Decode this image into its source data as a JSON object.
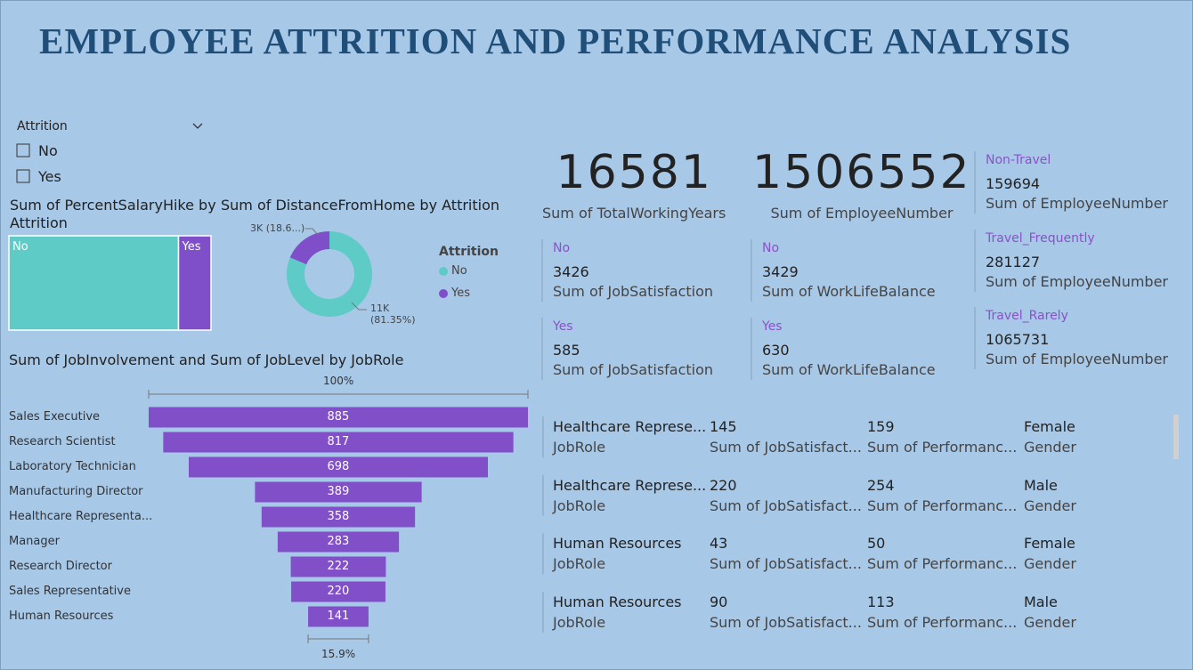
{
  "title": "EMPLOYEE ATTRITION AND PERFORMANCE ANALYSIS",
  "slicer": {
    "title": "Attrition",
    "options": [
      "No",
      "Yes"
    ]
  },
  "treemap": {
    "type": "treemap",
    "title": "Sum of PercentSalaryHike by Attrition",
    "categories": [
      "No",
      "Yes"
    ],
    "values": [
      18800,
      3600
    ],
    "colors": [
      "#5ecbc6",
      "#7f4fc9"
    ]
  },
  "donut": {
    "type": "donut",
    "title": "Sum of DistanceFromHome by Attrition",
    "legend_title": "Attrition",
    "categories": [
      "No",
      "Yes"
    ],
    "values": [
      11400,
      2613
    ],
    "value_labels": [
      "11K (81.35%)",
      "3K (18.6...)"
    ],
    "colors": [
      "#5ecbc6",
      "#7f4fc9"
    ]
  },
  "funnel": {
    "type": "funnel",
    "title": "Sum of JobInvolvement and Sum of JobLevel by JobRole",
    "categories": [
      "Sales Executive",
      "Research Scientist",
      "Laboratory Technician",
      "Manufacturing Director",
      "Healthcare Representa...",
      "Manager",
      "Research Director",
      "Sales Representative",
      "Human Resources"
    ],
    "values": [
      885,
      817,
      698,
      389,
      358,
      283,
      222,
      220,
      141
    ],
    "color": "#8150c9",
    "top_label": "100%",
    "bottom_label": "15.9%"
  },
  "kpis": [
    {
      "value": 16581,
      "label": "Sum of TotalWorkingYears"
    },
    {
      "value": 1506552,
      "label": "Sum of EmployeeNumber"
    }
  ],
  "job_satisfaction": [
    {
      "category": "No",
      "value": 3426,
      "label": "Sum of JobSatisfaction"
    },
    {
      "category": "Yes",
      "value": 585,
      "label": "Sum of JobSatisfaction"
    }
  ],
  "work_life_balance": [
    {
      "category": "No",
      "value": 3429,
      "label": "Sum of WorkLifeBalance"
    },
    {
      "category": "Yes",
      "value": 630,
      "label": "Sum of WorkLifeBalance"
    }
  ],
  "travel": [
    {
      "category": "Non-Travel",
      "value": 159694,
      "label": "Sum of EmployeeNumber"
    },
    {
      "category": "Travel_Frequently",
      "value": 281127,
      "label": "Sum of EmployeeNumber"
    },
    {
      "category": "Travel_Rarely",
      "value": 1065731,
      "label": "Sum of EmployeeNumber"
    }
  ],
  "role_gender_table": {
    "rows": [
      {
        "job_role": "Healthcare Represe...",
        "job_role_label": "JobRole",
        "job_satisfaction": 145,
        "job_satisfaction_label": "Sum of JobSatisfact...",
        "performance": 159,
        "performance_label": "Sum of Performanc...",
        "gender": "Female",
        "gender_label": "Gender"
      },
      {
        "job_role": "Healthcare Represe...",
        "job_role_label": "JobRole",
        "job_satisfaction": 220,
        "job_satisfaction_label": "Sum of JobSatisfact...",
        "performance": 254,
        "performance_label": "Sum of Performanc...",
        "gender": "Male",
        "gender_label": "Gender"
      },
      {
        "job_role": "Human Resources",
        "job_role_label": "JobRole",
        "job_satisfaction": 43,
        "job_satisfaction_label": "Sum of JobSatisfact...",
        "performance": 50,
        "performance_label": "Sum of Performanc...",
        "gender": "Female",
        "gender_label": "Gender"
      },
      {
        "job_role": "Human Resources",
        "job_role_label": "JobRole",
        "job_satisfaction": 90,
        "job_satisfaction_label": "Sum of JobSatisfact...",
        "performance": 113,
        "performance_label": "Sum of Performanc...",
        "gender": "Male",
        "gender_label": "Gender"
      }
    ]
  }
}
